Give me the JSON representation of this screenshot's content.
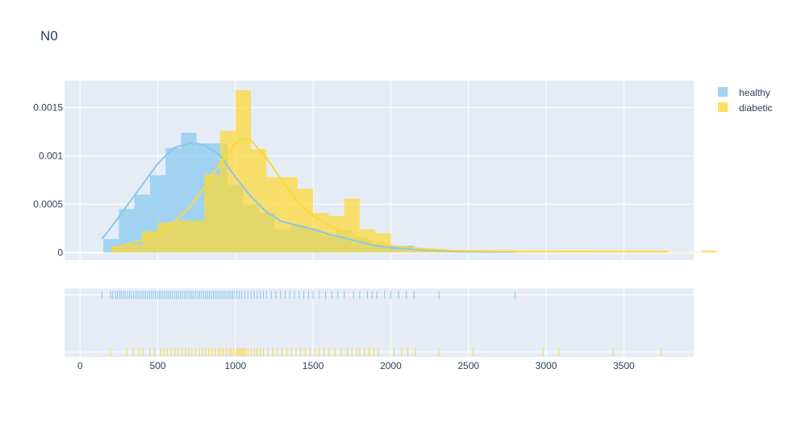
{
  "chart_data": {
    "type": "histogram",
    "title": "N0",
    "colors": {
      "healthy": "#87c8ee",
      "diabetic": "#fdd835",
      "plot_bg": "#e5ecf6",
      "grid": "#ffffff",
      "text": "#2a3f5f"
    },
    "main": {
      "xlim": [
        -100,
        3950
      ],
      "ylim": [
        -8e-05,
        0.00178
      ],
      "yticks": [
        0,
        0.0005,
        0.001,
        0.0015
      ],
      "ytick_labels": [
        "0",
        "0.0005",
        "0.001",
        "0.0015"
      ],
      "grid": true
    },
    "rug": {
      "grid": true
    },
    "xticks": [
      0,
      500,
      1000,
      1500,
      2000,
      2500,
      3000,
      3500
    ],
    "xtick_labels": [
      "0",
      "500",
      "1000",
      "1500",
      "2000",
      "2500",
      "3000",
      "3500"
    ],
    "legend": {
      "position": "top-right",
      "items": [
        "healthy",
        "diabetic"
      ]
    },
    "series": [
      {
        "name": "healthy",
        "histogram": {
          "bin_start": 150,
          "bin_width": 100,
          "values": [
            0.00014,
            0.00045,
            0.0006,
            0.0008,
            0.00108,
            0.00124,
            0.00113,
            0.00113,
            0.0007,
            0.0005,
            0.00041,
            0.00024,
            0.00028,
            0.00025,
            0.00018,
            0.00023,
            0.00016,
            0.00011,
            7e-05,
            7e-05,
            3e-05,
            2e-05,
            1e-05,
            1e-05,
            1e-05,
            1e-05,
            1e-05
          ]
        },
        "kde": {
          "x": [
            140,
            200,
            300,
            400,
            500,
            600,
            700,
            750,
            800,
            900,
            1000,
            1100,
            1200,
            1300,
            1400,
            1500,
            1600,
            1700,
            1800,
            1900,
            2000,
            2200,
            2400,
            2600,
            2800
          ],
          "y": [
            0.00014,
            0.00026,
            0.00048,
            0.0007,
            0.00092,
            0.00108,
            0.00113,
            0.00113,
            0.00111,
            0.00101,
            0.00078,
            0.00058,
            0.00042,
            0.00032,
            0.00028,
            0.00024,
            0.00019,
            0.00015,
            0.00011,
            7e-05,
            5e-05,
            3e-05,
            1e-05,
            5e-06,
            5e-06
          ]
        },
        "rug": [
          141,
          197,
          210,
          228,
          240,
          255,
          265,
          278,
          290,
          305,
          318,
          330,
          345,
          360,
          372,
          385,
          398,
          410,
          422,
          435,
          448,
          460,
          472,
          485,
          498,
          510,
          520,
          532,
          545,
          558,
          570,
          582,
          595,
          608,
          620,
          632,
          645,
          658,
          670,
          682,
          695,
          708,
          720,
          732,
          745,
          758,
          770,
          782,
          795,
          808,
          820,
          832,
          845,
          858,
          870,
          882,
          895,
          908,
          920,
          932,
          945,
          958,
          970,
          982,
          995,
          1010,
          1025,
          1040,
          1060,
          1080,
          1100,
          1120,
          1140,
          1160,
          1180,
          1200,
          1230,
          1260,
          1290,
          1320,
          1350,
          1380,
          1410,
          1440,
          1470,
          1500,
          1540,
          1580,
          1620,
          1660,
          1700,
          1760,
          1800,
          1850,
          1880,
          1910,
          1960,
          2000,
          2050,
          2100,
          2150,
          2310,
          2800
        ]
      },
      {
        "name": "diabetic",
        "histogram": {
          "bin_start": 200,
          "bin_width": 100,
          "values": [
            6e-05,
            8e-05,
            0.00022,
            0.00031,
            0.00033,
            0.00033,
            0.00081,
            0.00126,
            0.00168,
            0.00107,
            0.00078,
            0.00078,
            0.00066,
            0.00041,
            0.00038,
            0.00056,
            0.00024,
            0.0002,
            3e-05,
            2e-05,
            1.5e-05,
            1e-05,
            1e-05,
            2e-05,
            1e-05,
            1e-05,
            5e-06,
            5e-06,
            1e-05,
            2e-05,
            2e-05,
            5e-06,
            5e-06,
            5e-06,
            5e-06,
            1e-05,
            5e-06,
            5e-06,
            2e-05
          ]
        },
        "kde": {
          "x": [
            200,
            300,
            400,
            500,
            600,
            700,
            800,
            900,
            1000,
            1050,
            1100,
            1200,
            1300,
            1400,
            1500,
            1600,
            1700,
            1800,
            1900,
            2000,
            2200,
            2400,
            2600,
            2800,
            3000,
            3200,
            3400,
            3600,
            3780
          ],
          "y": [
            4e-05,
            8e-05,
            0.00013,
            0.0002,
            0.00031,
            0.00046,
            0.00067,
            0.00092,
            0.00113,
            0.00118,
            0.00116,
            0.00098,
            0.00074,
            0.00053,
            0.00038,
            0.00028,
            0.00021,
            0.00015,
            0.0001,
            7e-05,
            4e-05,
            2e-05,
            1.5e-05,
            1e-05,
            1e-05,
            1e-05,
            1e-05,
            1e-05,
            1e-05
          ]
        },
        "rug": [
          195,
          300,
          340,
          380,
          405,
          450,
          480,
          520,
          540,
          560,
          585,
          610,
          630,
          655,
          680,
          700,
          720,
          745,
          770,
          790,
          810,
          830,
          850,
          870,
          890,
          905,
          920,
          940,
          960,
          975,
          990,
          1005,
          1015,
          1025,
          1035,
          1045,
          1055,
          1065,
          1080,
          1100,
          1120,
          1140,
          1160,
          1180,
          1210,
          1240,
          1270,
          1300,
          1330,
          1360,
          1390,
          1420,
          1450,
          1480,
          1510,
          1540,
          1570,
          1600,
          1640,
          1680,
          1720,
          1750,
          1780,
          1800,
          1830,
          1860,
          1890,
          1920,
          2020,
          2070,
          2110,
          2160,
          2310,
          2530,
          2980,
          3080,
          3430,
          3740
        ]
      }
    ]
  }
}
